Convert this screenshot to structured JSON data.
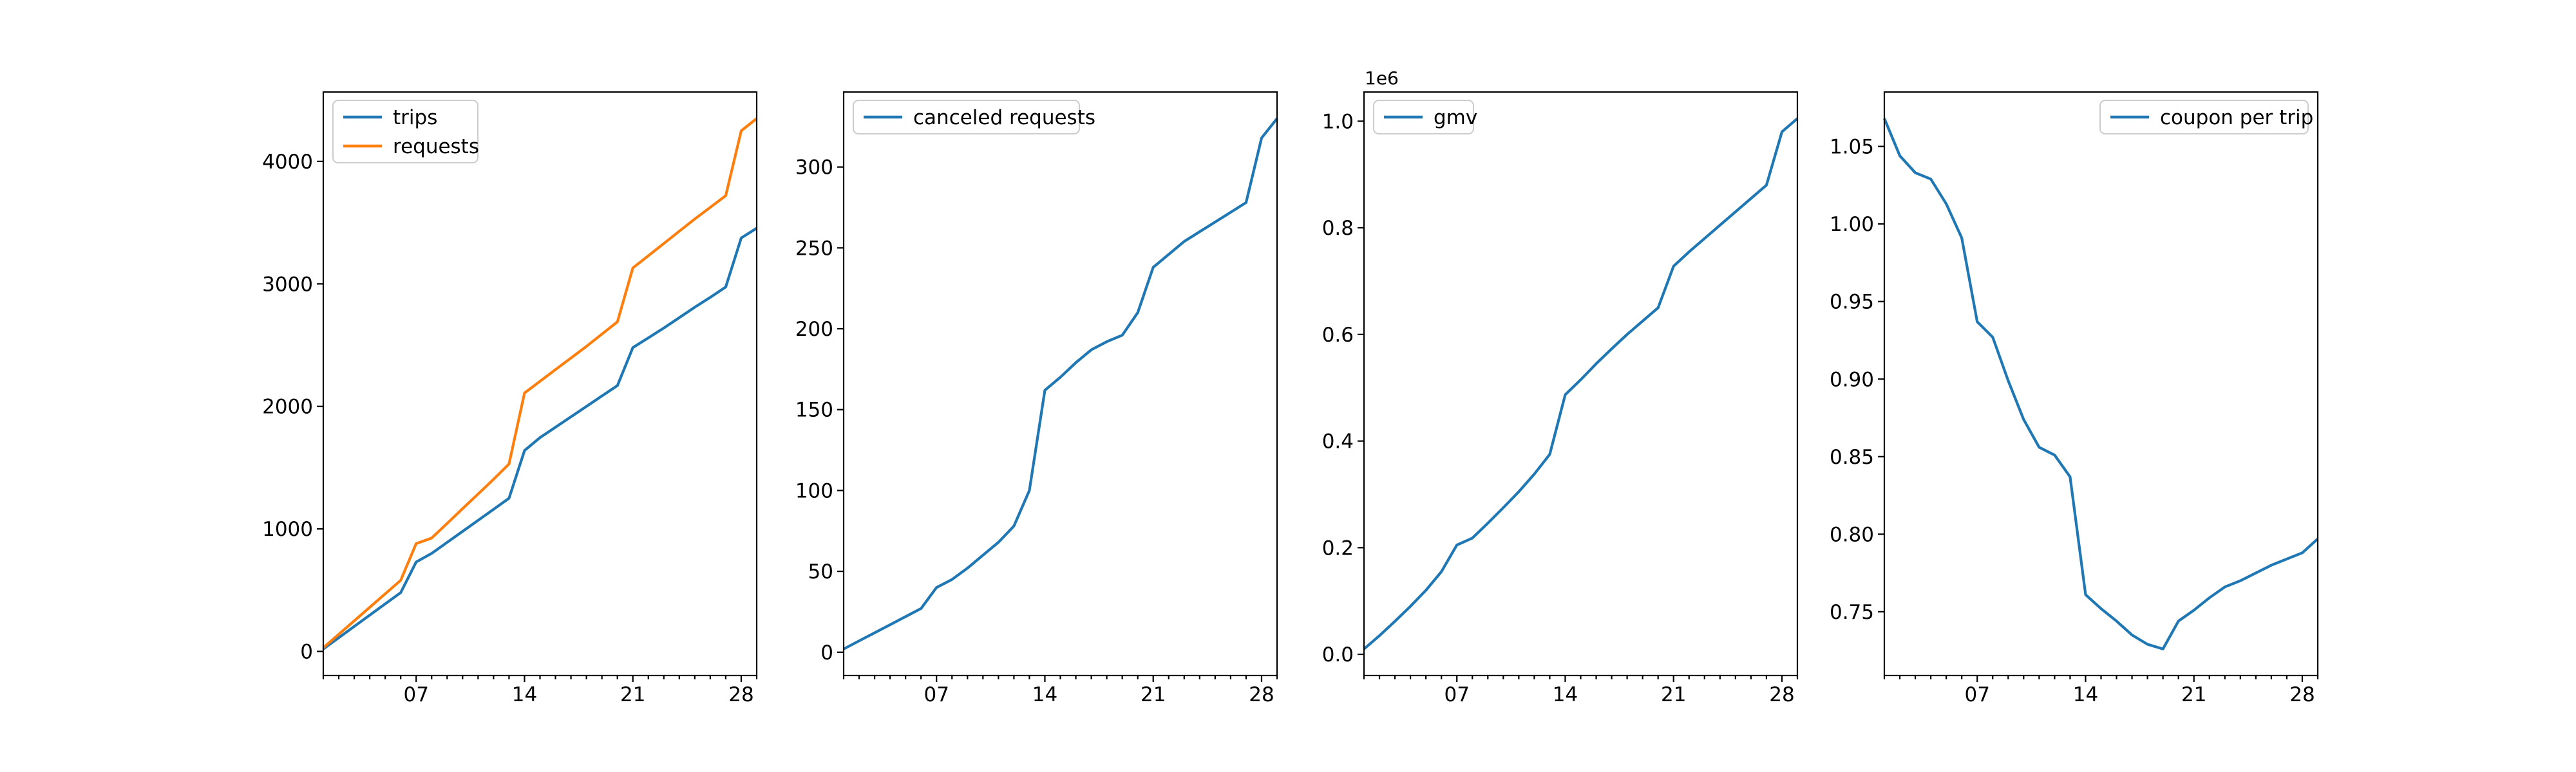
{
  "figure": {
    "background": "#ffffff",
    "axis_color": "#000000",
    "legend_border_color": "#cccccc",
    "legend_background": "#ffffff"
  },
  "chart_data": [
    {
      "type": "line",
      "title": "",
      "xlabel": "",
      "ylabel": "",
      "x": [
        1,
        2,
        3,
        4,
        5,
        6,
        7,
        8,
        9,
        10,
        11,
        12,
        13,
        14,
        15,
        16,
        17,
        18,
        19,
        20,
        21,
        22,
        23,
        24,
        25,
        26,
        27,
        28,
        29
      ],
      "xlim": [
        1,
        29
      ],
      "x_major_ticks": [
        7,
        14,
        21,
        28
      ],
      "x_major_tick_labels": [
        "07",
        "14",
        "21",
        "28"
      ],
      "x_minor_tick_every": 1,
      "y_ticks": [
        0,
        1000,
        2000,
        3000,
        4000
      ],
      "y_tick_labels": [
        "0",
        "1000",
        "2000",
        "3000",
        "4000"
      ],
      "y_offset_label": "",
      "y_margin_frac": 0.05,
      "grid": false,
      "legend_position": "upper-left",
      "series": [
        {
          "name": "trips",
          "color": "#1f77b4",
          "values": [
            20,
            112,
            204,
            296,
            388,
            480,
            730,
            800,
            890,
            980,
            1070,
            1160,
            1250,
            1640,
            1745,
            1830,
            1915,
            2000,
            2085,
            2170,
            2480,
            2560,
            2640,
            2725,
            2810,
            2890,
            2975,
            3375,
            3455
          ]
        },
        {
          "name": "requests",
          "color": "#ff7f0e",
          "values": [
            30,
            140,
            250,
            360,
            470,
            580,
            880,
            925,
            1045,
            1165,
            1285,
            1405,
            1530,
            2110,
            2205,
            2300,
            2395,
            2490,
            2590,
            2690,
            3130,
            3230,
            3330,
            3430,
            3530,
            3625,
            3720,
            4250,
            4350
          ]
        }
      ]
    },
    {
      "type": "line",
      "title": "",
      "xlabel": "",
      "ylabel": "",
      "x": [
        1,
        2,
        3,
        4,
        5,
        6,
        7,
        8,
        9,
        10,
        11,
        12,
        13,
        14,
        15,
        16,
        17,
        18,
        19,
        20,
        21,
        22,
        23,
        24,
        25,
        26,
        27,
        28,
        29
      ],
      "xlim": [
        1,
        29
      ],
      "x_major_ticks": [
        7,
        14,
        21,
        28
      ],
      "x_major_tick_labels": [
        "07",
        "14",
        "21",
        "28"
      ],
      "x_minor_tick_every": 1,
      "y_ticks": [
        0,
        50,
        100,
        150,
        200,
        250,
        300
      ],
      "y_tick_labels": [
        "0",
        "50",
        "100",
        "150",
        "200",
        "250",
        "300"
      ],
      "y_offset_label": "",
      "y_margin_frac": 0.05,
      "grid": false,
      "legend_position": "upper-left",
      "series": [
        {
          "name": "canceled requests",
          "color": "#1f77b4",
          "values": [
            2,
            7,
            12,
            17,
            22,
            27,
            40,
            45,
            52,
            60,
            68,
            78,
            100,
            162,
            170,
            179,
            187,
            192,
            196,
            210,
            238,
            246,
            254,
            260,
            266,
            272,
            278,
            318,
            330
          ]
        }
      ]
    },
    {
      "type": "line",
      "title": "",
      "xlabel": "",
      "ylabel": "",
      "x": [
        1,
        2,
        3,
        4,
        5,
        6,
        7,
        8,
        9,
        10,
        11,
        12,
        13,
        14,
        15,
        16,
        17,
        18,
        19,
        20,
        21,
        22,
        23,
        24,
        25,
        26,
        27,
        28,
        29
      ],
      "xlim": [
        1,
        29
      ],
      "x_major_ticks": [
        7,
        14,
        21,
        28
      ],
      "x_major_tick_labels": [
        "07",
        "14",
        "21",
        "28"
      ],
      "x_minor_tick_every": 1,
      "y_ticks": [
        0,
        200000,
        400000,
        600000,
        800000,
        1000000
      ],
      "y_tick_labels": [
        "0.0",
        "0.2",
        "0.4",
        "0.6",
        "0.8",
        "1.0"
      ],
      "y_offset_label": "1e6",
      "y_margin_frac": 0.05,
      "grid": false,
      "legend_position": "upper-left",
      "series": [
        {
          "name": "gmv",
          "color": "#1f77b4",
          "values": [
            10000,
            35000,
            62000,
            90000,
            120000,
            155000,
            205000,
            218000,
            246000,
            275000,
            305000,
            338000,
            375000,
            487000,
            515000,
            545000,
            573000,
            600000,
            625000,
            650000,
            728000,
            755000,
            780000,
            805000,
            830000,
            855000,
            880000,
            980000,
            1005000
          ]
        }
      ]
    },
    {
      "type": "line",
      "title": "",
      "xlabel": "",
      "ylabel": "",
      "x": [
        1,
        2,
        3,
        4,
        5,
        6,
        7,
        8,
        9,
        10,
        11,
        12,
        13,
        14,
        15,
        16,
        17,
        18,
        19,
        20,
        21,
        22,
        23,
        24,
        25,
        26,
        27,
        28,
        29
      ],
      "xlim": [
        1,
        29
      ],
      "x_major_ticks": [
        7,
        14,
        21,
        28
      ],
      "x_major_tick_labels": [
        "07",
        "14",
        "21",
        "28"
      ],
      "x_minor_tick_every": 1,
      "y_ticks": [
        0.75,
        0.8,
        0.85,
        0.9,
        0.95,
        1.0,
        1.05
      ],
      "y_tick_labels": [
        "0.75",
        "0.80",
        "0.85",
        "0.90",
        "0.95",
        "1.00",
        "1.05"
      ],
      "y_offset_label": "",
      "y_margin_frac": 0.05,
      "grid": false,
      "legend_position": "upper-right",
      "series": [
        {
          "name": "coupon per trip",
          "color": "#1f77b4",
          "values": [
            1.068,
            1.044,
            1.033,
            1.029,
            1.013,
            0.991,
            0.937,
            0.927,
            0.899,
            0.874,
            0.856,
            0.851,
            0.837,
            0.761,
            0.752,
            0.744,
            0.735,
            0.729,
            0.726,
            0.744,
            0.751,
            0.759,
            0.766,
            0.77,
            0.775,
            0.78,
            0.784,
            0.788,
            0.797
          ]
        }
      ]
    }
  ]
}
